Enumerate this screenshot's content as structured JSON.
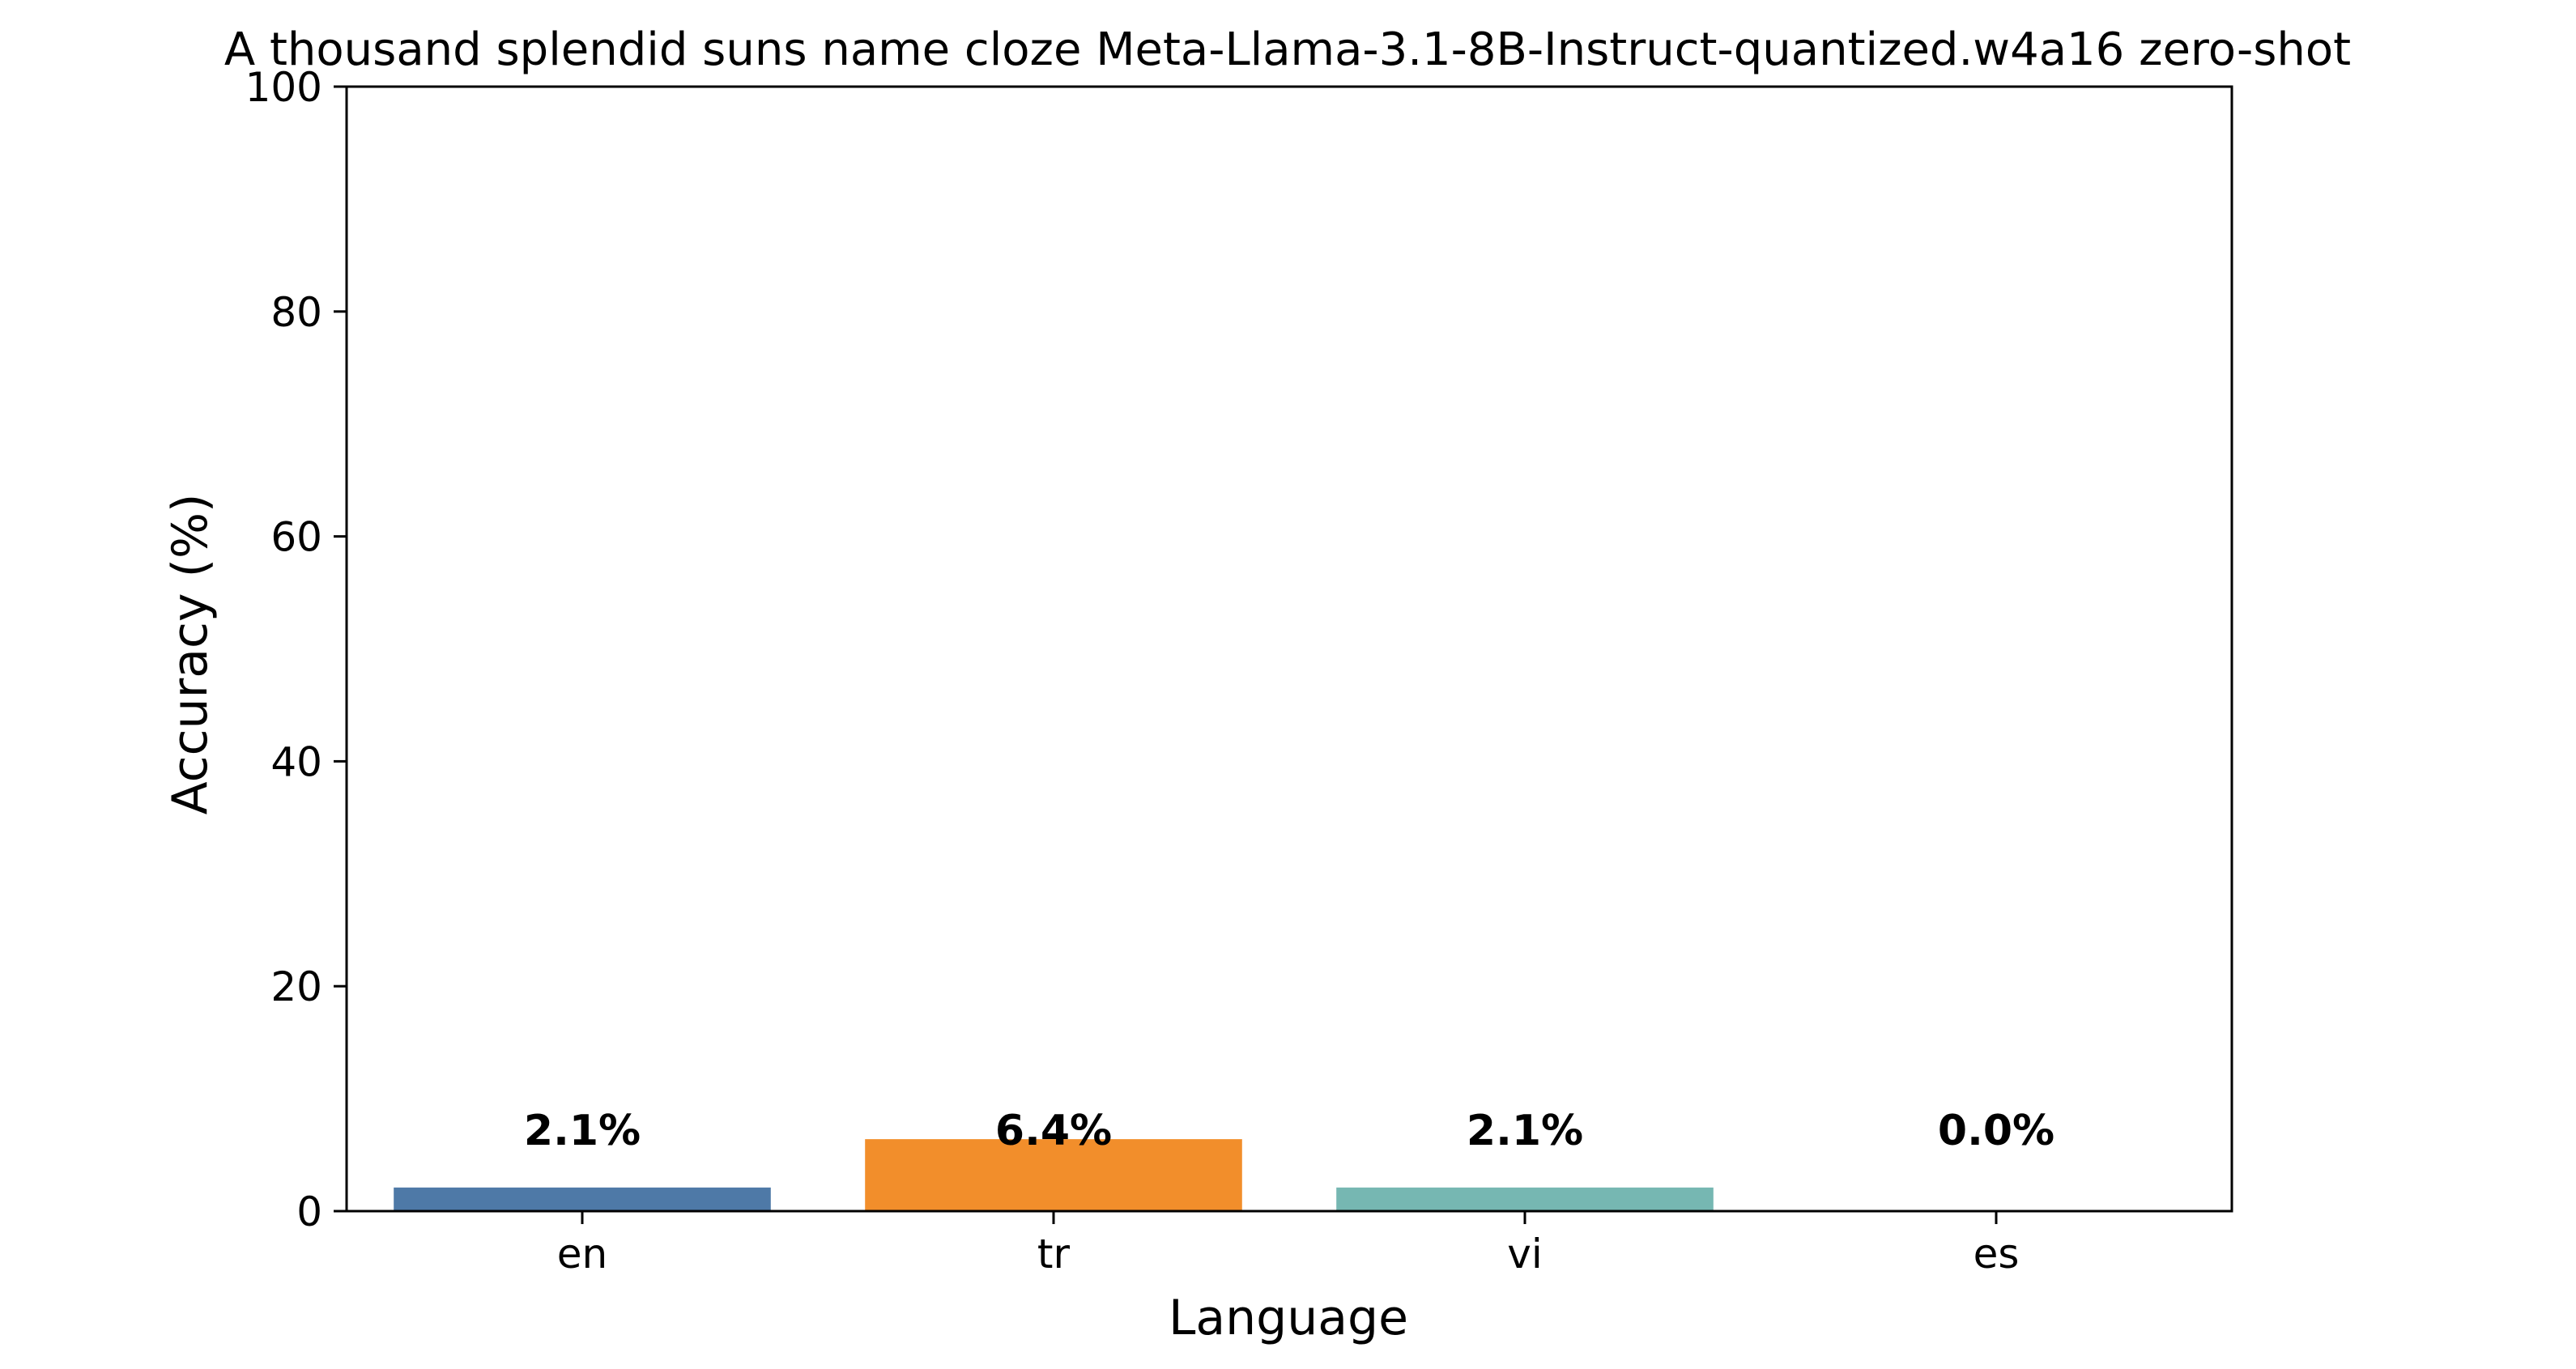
{
  "chart_data": {
    "type": "bar",
    "title": "A thousand splendid suns name cloze Meta-Llama-3.1-8B-Instruct-quantized.w4a16 zero-shot",
    "xlabel": "Language",
    "ylabel": "Accuracy (%)",
    "categories": [
      "en",
      "tr",
      "vi",
      "es"
    ],
    "values": [
      2.1,
      6.4,
      2.1,
      0.0
    ],
    "value_labels": [
      "2.1%",
      "6.4%",
      "2.1%",
      "0.0%"
    ],
    "colors": [
      "#4e79a7",
      "#f28e2b",
      "#76b7b2",
      "#e15759"
    ],
    "ylim": [
      0,
      100
    ],
    "yticks": [
      0,
      20,
      40,
      60,
      80,
      100
    ],
    "grid": false,
    "legend": "none"
  }
}
